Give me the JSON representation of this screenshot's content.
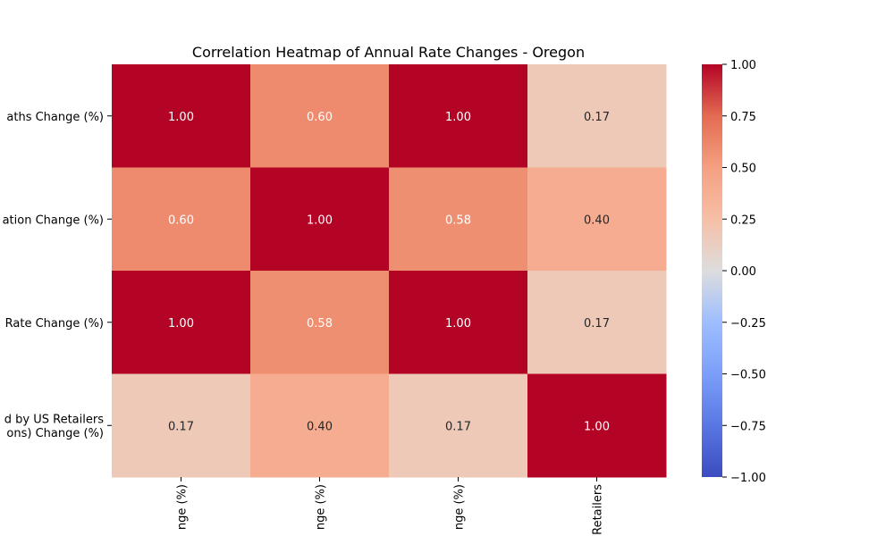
{
  "chart_data": {
    "type": "heatmap",
    "title": "Correlation Heatmap of Annual Rate Changes - Oregon",
    "row_labels": [
      [
        "aths Change (%)"
      ],
      [
        "ation Change (%)"
      ],
      [
        "Rate Change (%)"
      ],
      [
        "d by US Retailers",
        "ons) Change (%)"
      ]
    ],
    "col_labels": [
      "nge (%)",
      "nge (%)",
      "nge (%)",
      "Retailers"
    ],
    "values": [
      [
        1.0,
        0.6,
        1.0,
        0.17
      ],
      [
        0.6,
        1.0,
        0.58,
        0.4
      ],
      [
        1.0,
        0.58,
        1.0,
        0.17
      ],
      [
        0.17,
        0.4,
        0.17,
        1.0
      ]
    ],
    "annotations": [
      [
        "1.00",
        "0.60",
        "1.00",
        "0.17"
      ],
      [
        "0.60",
        "1.00",
        "0.58",
        "0.40"
      ],
      [
        "1.00",
        "0.58",
        "1.00",
        "0.17"
      ],
      [
        "0.17",
        "0.40",
        "0.17",
        "1.00"
      ]
    ],
    "colormap": "coolwarm",
    "vmin": -1.0,
    "vmax": 1.0,
    "colorbar_ticks": [
      "1.00",
      "0.75",
      "0.50",
      "0.25",
      "0.00",
      "−0.25",
      "−0.50",
      "−0.75",
      "−1.00"
    ],
    "colorbar_tick_values": [
      1.0,
      0.75,
      0.5,
      0.25,
      0.0,
      -0.25,
      -0.5,
      -0.75,
      -1.0
    ],
    "grid": false
  }
}
